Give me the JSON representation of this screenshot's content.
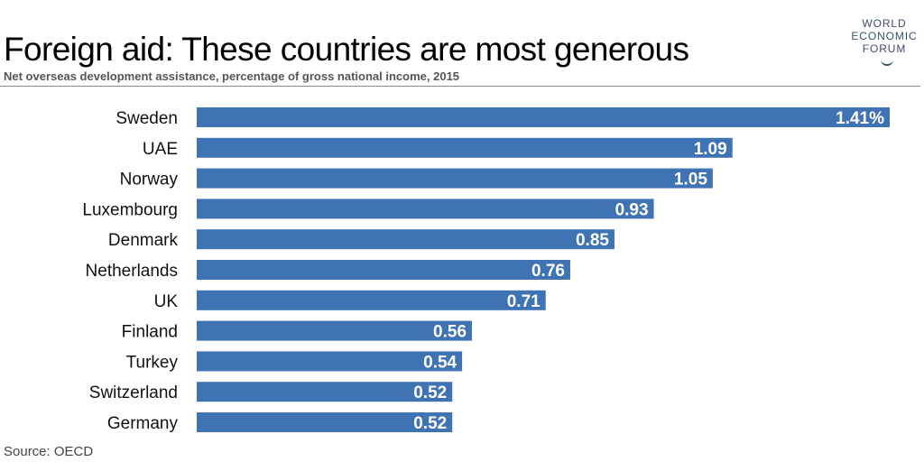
{
  "header": {
    "title": "Foreign aid: These countries are most generous",
    "subtitle": "Net overseas development assistance, percentage of gross national income, 2015"
  },
  "logo": {
    "lines": [
      "WORLD",
      "ECONOMIC",
      "FORUM"
    ]
  },
  "footer": {
    "source": "Source: OECD"
  },
  "colors": {
    "bar": "#3f73b3",
    "label": "#ffffff",
    "category": "#111111"
  },
  "chart_data": {
    "type": "bar",
    "orientation": "horizontal",
    "title": "Foreign aid: These countries are most generous",
    "subtitle": "Net overseas development assistance, percentage of gross national income, 2015",
    "categories": [
      "Sweden",
      "UAE",
      "Norway",
      "Luxembourg",
      "Denmark",
      "Netherlands",
      "UK",
      "Finland",
      "Turkey",
      "Switzerland",
      "Germany"
    ],
    "values": [
      1.41,
      1.09,
      1.05,
      0.93,
      0.85,
      0.76,
      0.71,
      0.56,
      0.54,
      0.52,
      0.52
    ],
    "data_labels": [
      "1.41%",
      "1.09",
      "1.05",
      "0.93",
      "0.85",
      "0.76",
      "0.71",
      "0.56",
      "0.54",
      "0.52",
      "0.52"
    ],
    "xlim": [
      0,
      1.41
    ],
    "grid": false,
    "legend": "none"
  }
}
